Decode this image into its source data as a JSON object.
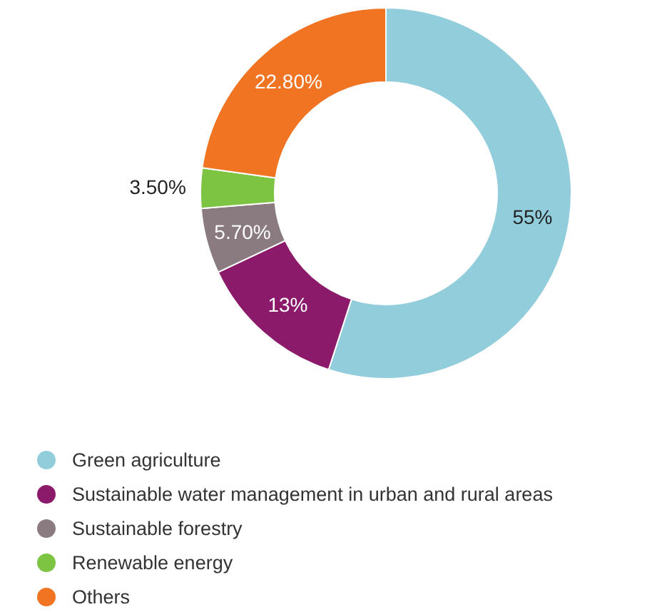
{
  "chart_data": {
    "type": "donut",
    "categories": [
      "Green agriculture",
      "Sustainable water management in urban and rural areas",
      "Sustainable forestry",
      "Renewable energy",
      "Others"
    ],
    "values": [
      55,
      13,
      5.7,
      3.5,
      22.8
    ],
    "value_labels": [
      "55%",
      "13%",
      "5.70%",
      "3.50%",
      "22.80%"
    ],
    "colors": [
      "#92cddc",
      "#8b1a6b",
      "#8a7b80",
      "#7dc443",
      "#f07422"
    ],
    "legend": "bottom"
  }
}
